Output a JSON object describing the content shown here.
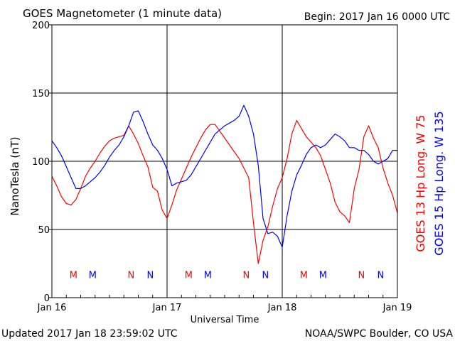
{
  "header": {
    "title": "GOES Magnetometer (1 minute data)",
    "begin": "Begin:  2017 Jan 16 0000 UTC"
  },
  "footer": {
    "updated": "Updated 2017 Jan 18 23:59:02 UTC",
    "credit": "NOAA/SWPC Boulder, CO USA"
  },
  "colors": {
    "goes13": "#ff0000",
    "goes15": "#0000ff",
    "axis": "#000000"
  },
  "chart_data": {
    "type": "line",
    "title": "GOES Magnetometer (1 minute data)",
    "xlabel": "Universal Time",
    "ylabel": "NanoTesla (nT)",
    "xlim": [
      0,
      72
    ],
    "ylim": [
      0,
      200
    ],
    "grid": true,
    "x_ticks": [
      {
        "hour": 0,
        "label": "Jan 16"
      },
      {
        "hour": 24,
        "label": "Jan 17"
      },
      {
        "hour": 48,
        "label": "Jan 18"
      },
      {
        "hour": 72,
        "label": "Jan 19"
      }
    ],
    "y_ticks": [
      0,
      50,
      100,
      150,
      200
    ],
    "series": [
      {
        "name": "GOES 13 Hp  Long. W 75",
        "color": "#ff0000",
        "x": [
          0,
          1,
          2,
          3,
          4,
          5,
          6,
          7,
          8,
          9,
          10,
          11,
          12,
          13,
          14,
          15,
          16,
          17,
          18,
          19,
          20,
          21,
          22,
          23,
          24,
          25,
          26,
          27,
          28,
          29,
          30,
          31,
          32,
          33,
          34,
          35,
          36,
          37,
          38,
          39,
          40,
          41,
          42,
          43,
          44,
          45,
          46,
          47,
          48,
          49,
          50,
          51,
          52,
          53,
          54,
          55,
          56,
          57,
          58,
          59,
          60,
          61,
          62,
          63,
          64,
          65,
          66,
          67,
          68,
          69,
          70,
          71,
          72
        ],
        "values": [
          89,
          82,
          74,
          69,
          68,
          72,
          80,
          89,
          95,
          100,
          106,
          111,
          115,
          117,
          118,
          119,
          126,
          120,
          113,
          104,
          96,
          81,
          78,
          64,
          58,
          68,
          79,
          87,
          95,
          103,
          110,
          117,
          123,
          127,
          127,
          122,
          117,
          112,
          107,
          102,
          95,
          88,
          55,
          25,
          42,
          52,
          67,
          80,
          88,
          102,
          120,
          130,
          124,
          118,
          114,
          110,
          104,
          94,
          84,
          70,
          63,
          60,
          55,
          80,
          94,
          118,
          126,
          117,
          110,
          95,
          84,
          75,
          62
        ]
      },
      {
        "name": "GOES 15 Hp  Long. W 135",
        "color": "#0000ff",
        "x": [
          0,
          1,
          2,
          3,
          4,
          5,
          6,
          7,
          8,
          9,
          10,
          11,
          12,
          13,
          14,
          15,
          16,
          17,
          18,
          19,
          20,
          21,
          22,
          23,
          24,
          25,
          26,
          27,
          28,
          29,
          30,
          31,
          32,
          33,
          34,
          35,
          36,
          37,
          38,
          39,
          40,
          41,
          42,
          43,
          44,
          45,
          46,
          47,
          48,
          49,
          50,
          51,
          52,
          53,
          54,
          55,
          56,
          57,
          58,
          59,
          60,
          61,
          62,
          63,
          64,
          65,
          66,
          67,
          68,
          69,
          70,
          71,
          72
        ],
        "values": [
          115,
          110,
          104,
          96,
          88,
          80,
          80,
          82,
          85,
          88,
          92,
          97,
          103,
          108,
          112,
          118,
          126,
          136,
          137,
          129,
          120,
          112,
          108,
          102,
          94,
          82,
          84,
          85,
          86,
          90,
          96,
          102,
          108,
          114,
          120,
          123,
          126,
          128,
          130,
          133,
          141,
          133,
          120,
          97,
          58,
          47,
          48,
          45,
          37,
          60,
          78,
          90,
          97,
          105,
          110,
          112,
          110,
          112,
          116,
          120,
          118,
          115,
          110,
          110,
          108,
          108,
          105,
          100,
          98,
          100,
          102,
          108,
          108
        ]
      }
    ],
    "annotations": [
      {
        "text": "M",
        "hour": 4.5,
        "color": "#ff0000"
      },
      {
        "text": "M",
        "hour": 8.5,
        "color": "#0000ff"
      },
      {
        "text": "N",
        "hour": 16.5,
        "color": "#ff0000"
      },
      {
        "text": "N",
        "hour": 20.5,
        "color": "#0000ff"
      },
      {
        "text": "M",
        "hour": 28.5,
        "color": "#ff0000"
      },
      {
        "text": "M",
        "hour": 32.5,
        "color": "#0000ff"
      },
      {
        "text": "N",
        "hour": 40.5,
        "color": "#ff0000"
      },
      {
        "text": "N",
        "hour": 44.5,
        "color": "#0000ff"
      },
      {
        "text": "M",
        "hour": 52.5,
        "color": "#ff0000"
      },
      {
        "text": "M",
        "hour": 56.5,
        "color": "#0000ff"
      },
      {
        "text": "N",
        "hour": 64.5,
        "color": "#ff0000"
      },
      {
        "text": "N",
        "hour": 68.5,
        "color": "#0000ff"
      }
    ],
    "annotation_level": 17
  }
}
